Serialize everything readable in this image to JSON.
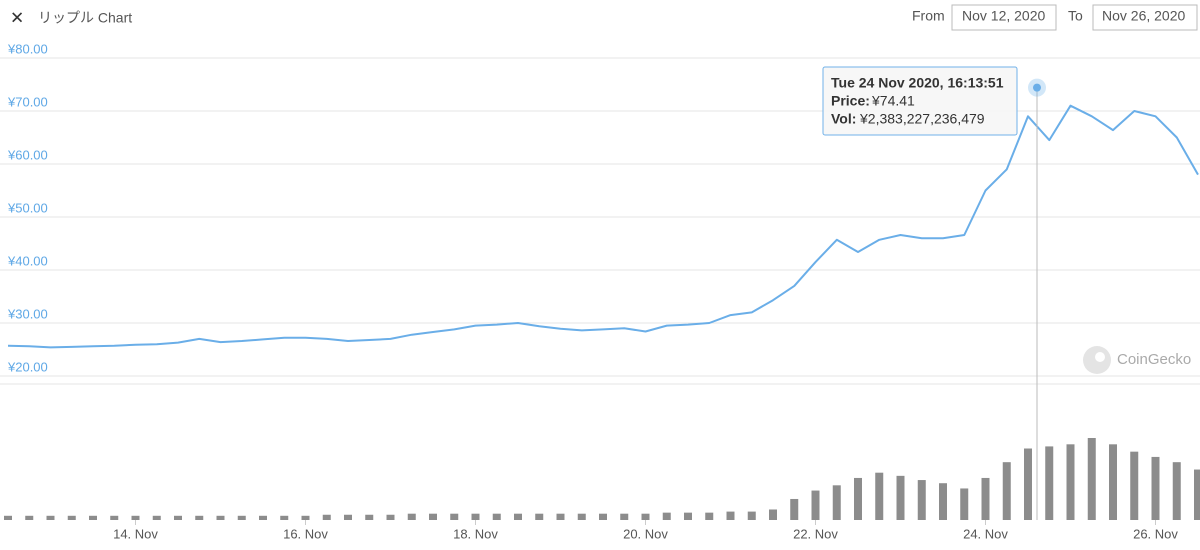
{
  "header": {
    "close_icon": "✕",
    "title": "リップル Chart",
    "from_caption": "From",
    "from_date": "Nov 12, 2020",
    "to_caption": "To",
    "to_date": "Nov 26, 2020"
  },
  "watermark": "CoinGecko",
  "chart_data": {
    "type": "line",
    "categories": [
      null,
      null,
      null,
      null,
      null,
      null,
      "14. Nov",
      null,
      null,
      null,
      null,
      null,
      null,
      null,
      "16. Nov",
      null,
      null,
      null,
      null,
      null,
      null,
      null,
      "18. Nov",
      null,
      null,
      null,
      null,
      null,
      null,
      null,
      "20. Nov",
      null,
      null,
      null,
      null,
      null,
      null,
      null,
      "22. Nov",
      null,
      null,
      null,
      null,
      null,
      null,
      null,
      "24. Nov",
      null,
      null,
      null,
      null,
      null,
      null,
      null,
      "26. Nov",
      null,
      null
    ],
    "values": [
      25.7,
      25.6,
      25.4,
      25.5,
      25.6,
      25.7,
      25.9,
      26.0,
      26.3,
      27.0,
      26.4,
      26.6,
      26.9,
      27.2,
      27.2,
      27.0,
      26.6,
      26.8,
      27.0,
      27.8,
      28.3,
      28.8,
      29.5,
      29.7,
      30.0,
      29.4,
      28.9,
      28.6,
      28.8,
      29.0,
      28.4,
      29.5,
      29.7,
      30.0,
      31.5,
      32.0,
      34.3,
      37.0,
      41.5,
      45.7,
      43.4,
      45.7,
      46.6,
      46.0,
      46.0,
      46.6,
      55.0,
      59.0,
      69.0,
      64.5,
      71.0,
      69.0,
      66.4,
      70.0,
      69.0,
      65.0,
      58.0
    ],
    "volumes": [
      140000000000,
      140000000000,
      140000000000,
      140000000000,
      140000000000,
      140000000000,
      140000000000,
      140000000000,
      140000000000,
      140000000000,
      140000000000,
      140000000000,
      140000000000,
      140000000000,
      140000000000,
      175000000000,
      175000000000,
      175000000000,
      175000000000,
      210000000000,
      210000000000,
      210000000000,
      210000000000,
      210000000000,
      210000000000,
      210000000000,
      210000000000,
      210000000000,
      210000000000,
      210000000000,
      210000000000,
      245000000000,
      245000000000,
      245000000000,
      280000000000,
      280000000000,
      350000000000,
      700000000000,
      980000000000,
      1155000000000,
      1400000000000,
      1575000000000,
      1470000000000,
      1330000000000,
      1225000000000,
      1050000000000,
      1400000000000,
      1925000000000,
      2380000000000,
      2450000000000,
      2520000000000,
      2730000000000,
      2520000000000,
      2275000000000,
      2100000000000,
      1925000000000,
      1680000000000
    ],
    "color": "#6aaee8",
    "volume_color": "#8c8c8c",
    "ylim": [
      20,
      80
    ],
    "yticks": [
      {
        "value": 20,
        "label": "¥20.00"
      },
      {
        "value": 30,
        "label": "¥30.00"
      },
      {
        "value": 40,
        "label": "¥40.00"
      },
      {
        "value": 50,
        "label": "¥50.00"
      },
      {
        "value": 60,
        "label": "¥60.00"
      },
      {
        "value": 70,
        "label": "¥70.00"
      },
      {
        "value": 80,
        "label": "¥80.00"
      }
    ],
    "grid": true,
    "tooltip": {
      "title": "Tue 24 Nov 2020, 16:13:51",
      "price_caption": "Price:",
      "price_value": 74.41,
      "price_label": "¥74.41",
      "vol_caption": "Vol:",
      "vol_label": "¥2,383,227,236,479"
    }
  }
}
